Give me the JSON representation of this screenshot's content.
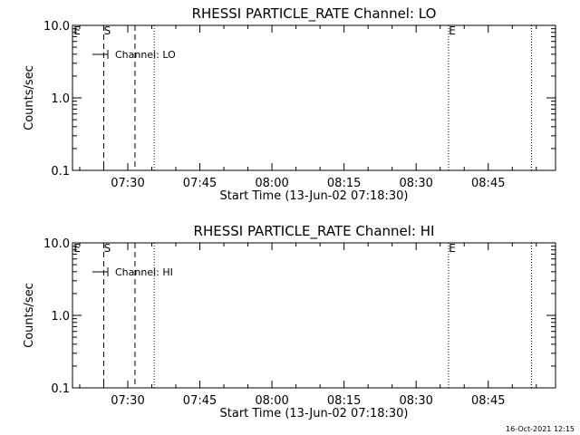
{
  "chart_data": [
    {
      "type": "line",
      "title": "RHESSI PARTICLE_RATE Channel: LO",
      "xlabel": "Start Time (13-Jun-02 07:18:30)",
      "ylabel": "Counts/sec",
      "y_scale": "log",
      "ylim": [
        0.1,
        10.0
      ],
      "y_ticks": [
        "0.1",
        "1.0",
        "10.0"
      ],
      "xlim": [
        "07:18:30",
        "08:59:00"
      ],
      "x_ticks": [
        "07:30",
        "07:45",
        "08:00",
        "08:15",
        "08:30",
        "08:45"
      ],
      "legend_entry": "Channel: LO",
      "legend_position": "top-left",
      "series": [
        {
          "values": []
        }
      ],
      "markers": [
        {
          "label": "E",
          "time": "07:18:30",
          "style": "none"
        },
        {
          "label": "S",
          "time": "07:25:00",
          "style": "dashed"
        },
        {
          "label": "",
          "time": "07:31:30",
          "style": "dashed"
        },
        {
          "label": "",
          "time": "07:35:30",
          "style": "dotted"
        },
        {
          "label": "E",
          "time": "08:36:45",
          "style": "dotted"
        },
        {
          "label": "",
          "time": "08:54:00",
          "style": "dotted"
        }
      ]
    },
    {
      "type": "line",
      "title": "RHESSI PARTICLE_RATE Channel: HI",
      "xlabel": "Start Time (13-Jun-02 07:18:30)",
      "ylabel": "Counts/sec",
      "y_scale": "log",
      "ylim": [
        0.1,
        10.0
      ],
      "y_ticks": [
        "0.1",
        "1.0",
        "10.0"
      ],
      "xlim": [
        "07:18:30",
        "08:59:00"
      ],
      "x_ticks": [
        "07:30",
        "07:45",
        "08:00",
        "08:15",
        "08:30",
        "08:45"
      ],
      "legend_entry": "Channel: HI",
      "legend_position": "top-left",
      "series": [
        {
          "values": []
        }
      ],
      "markers": [
        {
          "label": "E",
          "time": "07:18:30",
          "style": "none"
        },
        {
          "label": "S",
          "time": "07:25:00",
          "style": "dashed"
        },
        {
          "label": "",
          "time": "07:31:30",
          "style": "dashed"
        },
        {
          "label": "",
          "time": "07:35:30",
          "style": "dotted"
        },
        {
          "label": "E",
          "time": "08:36:45",
          "style": "dotted"
        },
        {
          "label": "",
          "time": "08:54:00",
          "style": "dotted"
        }
      ]
    }
  ],
  "footer": {
    "timestamp": "16-Oct-2021 12:15"
  }
}
